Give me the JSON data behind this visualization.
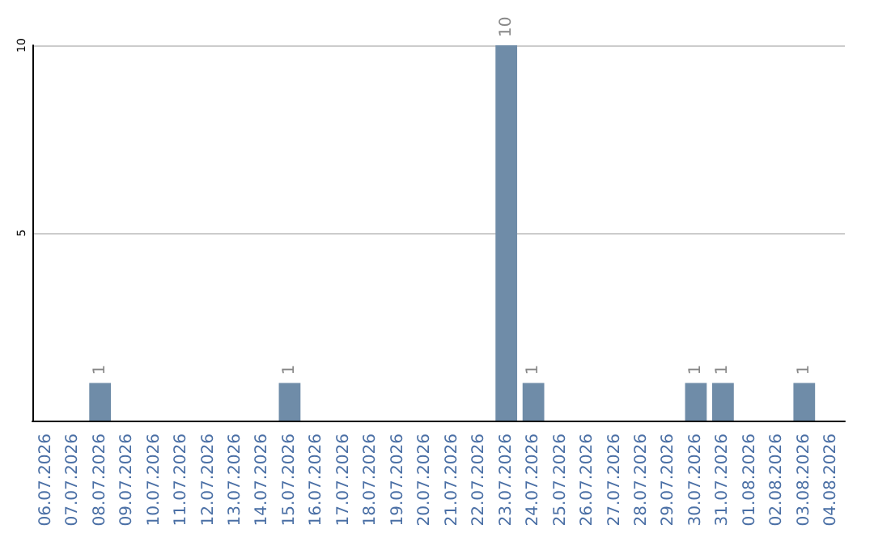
{
  "chart_data": {
    "type": "bar",
    "categories": [
      "06.07.2026",
      "07.07.2026",
      "08.07.2026",
      "09.07.2026",
      "10.07.2026",
      "11.07.2026",
      "12.07.2026",
      "13.07.2026",
      "14.07.2026",
      "15.07.2026",
      "16.07.2026",
      "17.07.2026",
      "18.07.2026",
      "19.07.2026",
      "20.07.2026",
      "21.07.2026",
      "22.07.2026",
      "23.07.2026",
      "24.07.2026",
      "25.07.2026",
      "26.07.2026",
      "27.07.2026",
      "28.07.2026",
      "29.07.2026",
      "30.07.2026",
      "31.07.2026",
      "01.08.2026",
      "02.08.2026",
      "03.08.2026",
      "04.08.2026"
    ],
    "values": [
      0,
      0,
      1,
      0,
      0,
      0,
      0,
      0,
      0,
      1,
      0,
      0,
      0,
      0,
      0,
      0,
      0,
      10,
      1,
      0,
      0,
      0,
      0,
      0,
      1,
      1,
      0,
      0,
      1,
      0
    ],
    "value_labels": [
      null,
      null,
      "1",
      null,
      null,
      null,
      null,
      null,
      null,
      "1",
      null,
      null,
      null,
      null,
      null,
      null,
      null,
      "10",
      "1",
      null,
      null,
      null,
      null,
      null,
      "1",
      "1",
      null,
      null,
      "1",
      null
    ],
    "color": "#6f8ca8",
    "ylim": [
      0,
      10
    ],
    "yticks": [
      5,
      10
    ],
    "grid": "y"
  }
}
